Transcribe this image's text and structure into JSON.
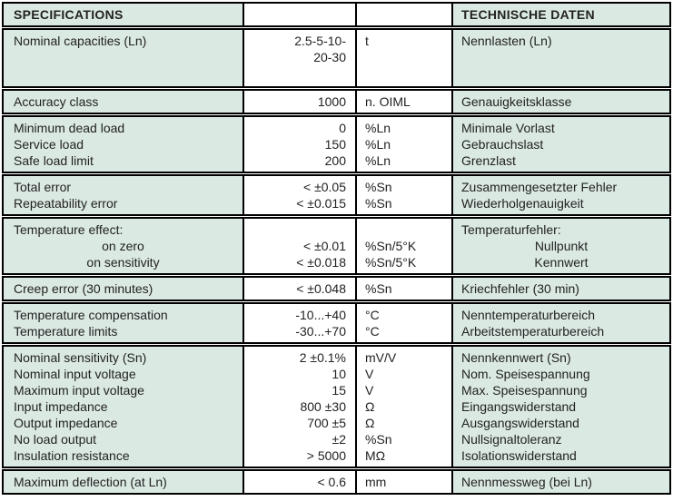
{
  "table": {
    "header": {
      "en": "SPECIFICATIONS",
      "de": "TECHNISCHE DATEN"
    },
    "colors": {
      "label_cell_green": "#dbe9e3",
      "value_cell_white": "#ffffff",
      "border_black": "#000000",
      "text": "#222221"
    },
    "groups": [
      {
        "en": [
          "Nominal capacities (Ln)"
        ],
        "val": [
          "2.5-5-10-",
          "20-30"
        ],
        "unit": [
          "t"
        ],
        "de": [
          "Nennlasten (Ln)"
        ]
      },
      {
        "en": [
          "Accuracy class"
        ],
        "val": [
          "1000"
        ],
        "unit": [
          "n. OIML"
        ],
        "de": [
          "Genauigkeitsklasse"
        ]
      },
      {
        "en": [
          "Minimum dead load",
          "Service load",
          "Safe load limit"
        ],
        "val": [
          "0",
          "150",
          "200"
        ],
        "unit": [
          "%Ln",
          "%Ln",
          "%Ln"
        ],
        "de": [
          "Minimale Vorlast",
          "Gebrauchslast",
          "Grenzlast"
        ]
      },
      {
        "en": [
          "Total error",
          "Repeatability error"
        ],
        "val": [
          "< ±0.05",
          "< ±0.015"
        ],
        "unit": [
          "%Sn",
          "%Sn"
        ],
        "de": [
          "Zusammengesetzter Fehler",
          "Wiederholgenauigkeit"
        ]
      },
      {
        "en": [
          "Temperature effect:",
          "on zero",
          "on sensitivity"
        ],
        "en_center": [
          1,
          2
        ],
        "val": [
          "",
          "< ±0.01",
          "< ±0.018"
        ],
        "unit": [
          "",
          "%Sn/5°K",
          "%Sn/5°K"
        ],
        "de": [
          "Temperaturfehler:",
          "Nullpunkt",
          "Kennwert"
        ],
        "de_center": [
          1,
          2
        ]
      },
      {
        "en": [
          "Creep error (30 minutes)"
        ],
        "val": [
          "< ±0.048"
        ],
        "unit": [
          "%Sn"
        ],
        "de": [
          "Kriechfehler (30 min)"
        ]
      },
      {
        "en": [
          "Temperature compensation",
          "Temperature limits"
        ],
        "val": [
          "-10...+40",
          "-30...+70"
        ],
        "unit": [
          "°C",
          "°C"
        ],
        "de": [
          "Nenntemperaturbereich",
          "Arbeitstemperaturbereich"
        ]
      },
      {
        "en": [
          "Nominal sensitivity (Sn)",
          "Nominal input voltage",
          "Maximum input voltage",
          "Input impedance",
          "Output impedance",
          "No load output",
          "Insulation resistance"
        ],
        "val": [
          "2 ±0.1%",
          "10",
          "15",
          "800 ±30",
          "700 ±5",
          "±2",
          "> 5000"
        ],
        "unit": [
          "mV/V",
          "V",
          "V",
          "Ω",
          "Ω",
          "%Sn",
          "MΩ"
        ],
        "de": [
          "Nennkennwert (Sn)",
          "Nom. Speisespannung",
          "Max. Speisespannung",
          "Eingangswiderstand",
          "Ausgangswiderstand",
          "Nullsignaltoleranz",
          "Isolationswiderstand"
        ]
      },
      {
        "en": [
          "Maximum deflection (at Ln)"
        ],
        "val": [
          "< 0.6"
        ],
        "unit": [
          "mm"
        ],
        "de": [
          "Nennmessweg (bei Ln)"
        ]
      }
    ]
  }
}
